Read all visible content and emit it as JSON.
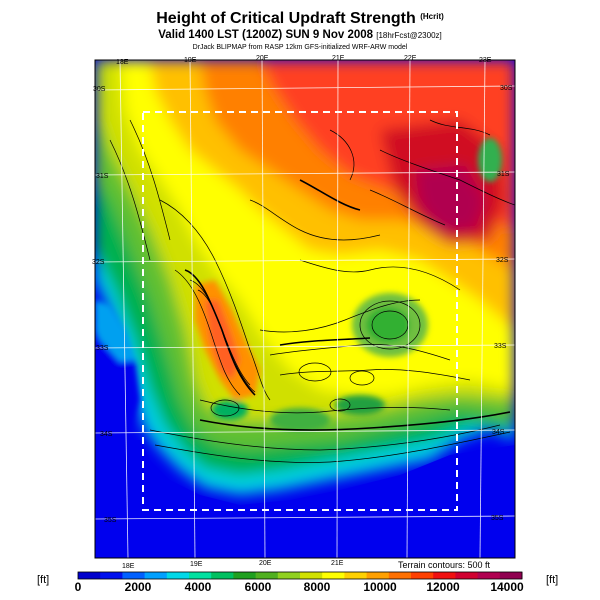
{
  "title": "Height of Critical Updraft Strength",
  "title_unit": "(Hcrit)",
  "subtitle": "Valid 1400 LST (1200Z) SUN 9 Nov 2008",
  "subtitle_extra": "[18hrFcst@2300z]",
  "credit": "DrJack BLIPMAP from RASP 12km GFS-initialized WRF-ARW model",
  "longitude_top": [
    "18E",
    "19E",
    "20E",
    "21E",
    "22E",
    "23E"
  ],
  "longitude_bottom": [
    "18E",
    "19E",
    "20E",
    "21E"
  ],
  "latitude_right": [
    "30S",
    "31S",
    "32S",
    "33S",
    "34S",
    "35S"
  ],
  "latitude_left": [
    "30S",
    "31S",
    "32S",
    "33S",
    "34S",
    "35S"
  ],
  "terrain_note": "Terrain contours: 500 ft",
  "colorbar": {
    "unit_left": "[ft]",
    "unit_right": "[ft]",
    "labels": [
      "0",
      "2000",
      "4000",
      "6000",
      "8000",
      "10000",
      "12000",
      "14000"
    ],
    "colors": [
      "#0000cc",
      "#0010ee",
      "#0060ff",
      "#00a0ff",
      "#00d8e8",
      "#00e0a0",
      "#00c060",
      "#20a020",
      "#50b020",
      "#90d020",
      "#d0e000",
      "#ffff00",
      "#ffd000",
      "#ffa000",
      "#ff7000",
      "#ff4000",
      "#f01010",
      "#d00030",
      "#b00050",
      "#900050"
    ]
  }
}
